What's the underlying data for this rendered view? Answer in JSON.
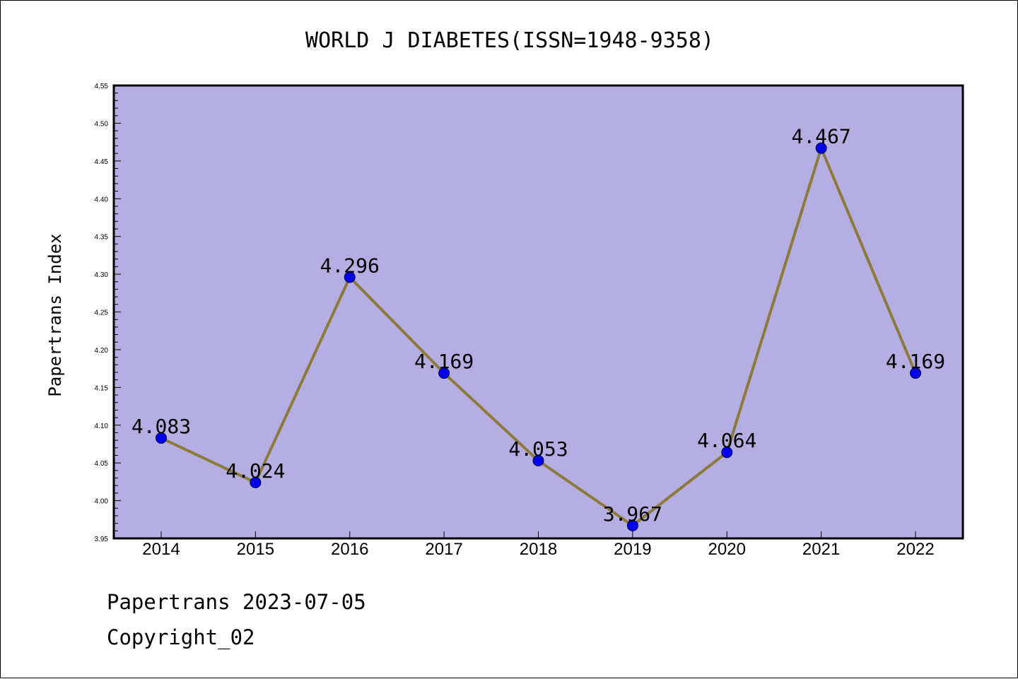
{
  "chart_data": {
    "type": "line",
    "title": "WORLD J DIABETES(ISSN=1948-9358)",
    "xlabel": "",
    "ylabel": "Papertrans Index",
    "categories": [
      "2014",
      "2015",
      "2016",
      "2017",
      "2018",
      "2019",
      "2020",
      "2021",
      "2022"
    ],
    "values": [
      4.083,
      4.024,
      4.296,
      4.169,
      4.053,
      3.967,
      4.064,
      4.467,
      4.169
    ],
    "data_labels": [
      "4.083",
      "4.024",
      "4.296",
      "4.169",
      "4.053",
      "3.967",
      "4.064",
      "4.467",
      "4.169"
    ],
    "ylim": [
      3.95,
      4.55
    ],
    "yticks": [
      "3.95",
      "4.00",
      "4.05",
      "4.10",
      "4.15",
      "4.20",
      "4.25",
      "4.30",
      "4.35",
      "4.40",
      "4.45",
      "4.50",
      "4.55"
    ],
    "grid": false,
    "legend": "none",
    "colors": {
      "plot_background": "#b5aee2",
      "line": "#8b7a3a",
      "marker": "#0000ee",
      "marker_edge": "#000040"
    }
  },
  "footer": {
    "line1": "Papertrans 2023-07-05",
    "line2": "Copyright_02"
  }
}
